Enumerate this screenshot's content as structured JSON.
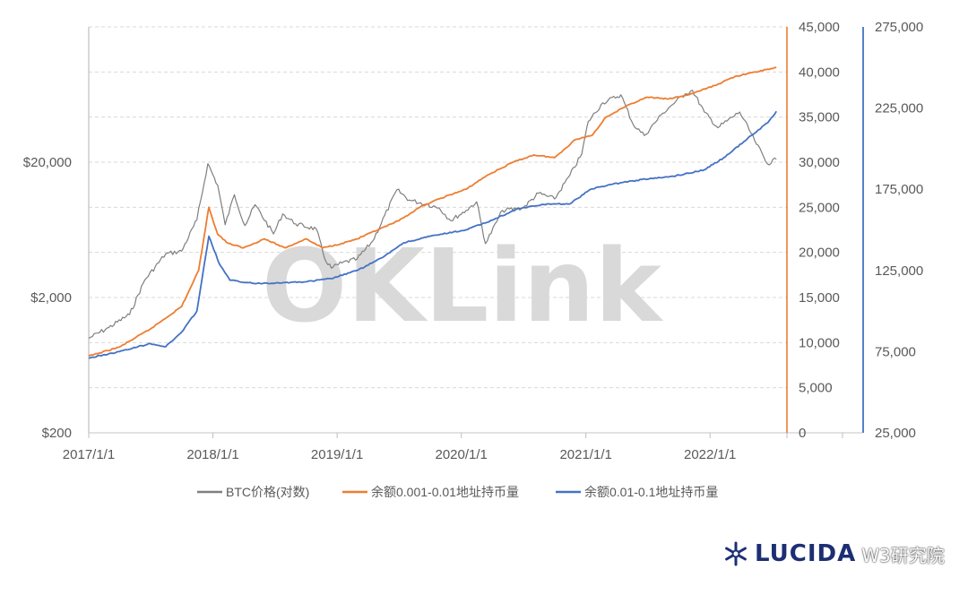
{
  "chart_data": {
    "type": "line",
    "watermark": "OKLink",
    "x_ticks": [
      "2017/1/1",
      "2018/1/1",
      "2019/1/1",
      "2020/1/1",
      "2021/1/1",
      "2022/1/1"
    ],
    "y_left": {
      "scale": "log",
      "range": [
        200,
        200000
      ],
      "ticks": [
        "$200",
        "$2,000",
        "$20,000"
      ]
    },
    "y_right1": {
      "range": [
        0,
        45000
      ],
      "ticks": [
        "0",
        "5,000",
        "10,000",
        "15,000",
        "20,000",
        "25,000",
        "30,000",
        "35,000",
        "40,000",
        "45,000"
      ]
    },
    "y_right2": {
      "range": [
        25000,
        275000
      ],
      "ticks": [
        "25,000",
        "75,000",
        "125,000",
        "175,000",
        "225,000",
        "275,000"
      ]
    },
    "grid": "horizontal-dashed",
    "legend_position": "bottom",
    "series": [
      {
        "name": "BTC价格(对数)",
        "axis": "left",
        "color": "#7f7f7f",
        "points": [
          [
            "2017-01-01",
            1000
          ],
          [
            "2017-03-01",
            1200
          ],
          [
            "2017-05-01",
            1500
          ],
          [
            "2017-06-15",
            2700
          ],
          [
            "2017-08-15",
            4200
          ],
          [
            "2017-10-01",
            4400
          ],
          [
            "2017-11-15",
            7500
          ],
          [
            "2017-12-17",
            19500
          ],
          [
            "2018-01-15",
            13500
          ],
          [
            "2018-02-06",
            6900
          ],
          [
            "2018-03-05",
            11500
          ],
          [
            "2018-04-05",
            6800
          ],
          [
            "2018-05-05",
            9700
          ],
          [
            "2018-06-28",
            5900
          ],
          [
            "2018-07-25",
            8300
          ],
          [
            "2018-09-01",
            7000
          ],
          [
            "2018-11-01",
            6400
          ],
          [
            "2018-11-25",
            3900
          ],
          [
            "2018-12-15",
            3300
          ],
          [
            "2019-01-15",
            3600
          ],
          [
            "2019-03-01",
            3850
          ],
          [
            "2019-04-15",
            5200
          ],
          [
            "2019-06-26",
            12500
          ],
          [
            "2019-08-01",
            10500
          ],
          [
            "2019-09-20",
            9800
          ],
          [
            "2019-10-28",
            9200
          ],
          [
            "2019-12-01",
            7400
          ],
          [
            "2020-01-15",
            8800
          ],
          [
            "2020-02-15",
            10200
          ],
          [
            "2020-03-12",
            5000
          ],
          [
            "2020-05-01",
            8800
          ],
          [
            "2020-07-01",
            9200
          ],
          [
            "2020-08-15",
            11800
          ],
          [
            "2020-10-01",
            10700
          ],
          [
            "2020-11-15",
            16000
          ],
          [
            "2020-12-20",
            23000
          ],
          [
            "2021-01-08",
            40000
          ],
          [
            "2021-02-20",
            55000
          ],
          [
            "2021-04-14",
            63000
          ],
          [
            "2021-05-20",
            38000
          ],
          [
            "2021-06-22",
            31500
          ],
          [
            "2021-08-15",
            46000
          ],
          [
            "2021-09-07",
            52000
          ],
          [
            "2021-10-20",
            64000
          ],
          [
            "2021-11-10",
            68000
          ],
          [
            "2021-12-15",
            47000
          ],
          [
            "2022-01-24",
            36000
          ],
          [
            "2022-03-29",
            47000
          ],
          [
            "2022-05-12",
            29000
          ],
          [
            "2022-06-18",
            19500
          ],
          [
            "2022-07-15",
            21000
          ]
        ]
      },
      {
        "name": "余额0.001-0.01地址持币量",
        "axis": "right1",
        "color": "#ed7d31",
        "points": [
          [
            "2017-01-01",
            8500
          ],
          [
            "2017-04-01",
            9500
          ],
          [
            "2017-07-01",
            11500
          ],
          [
            "2017-10-01",
            14000
          ],
          [
            "2017-11-20",
            18000
          ],
          [
            "2017-12-20",
            25000
          ],
          [
            "2018-01-15",
            22000
          ],
          [
            "2018-02-15",
            21000
          ],
          [
            "2018-04-01",
            20500
          ],
          [
            "2018-06-01",
            21500
          ],
          [
            "2018-08-01",
            20500
          ],
          [
            "2018-10-01",
            21500
          ],
          [
            "2018-11-20",
            20500
          ],
          [
            "2019-01-15",
            21000
          ],
          [
            "2019-03-01",
            21500
          ],
          [
            "2019-05-01",
            22500
          ],
          [
            "2019-07-01",
            23500
          ],
          [
            "2019-09-01",
            25000
          ],
          [
            "2019-11-01",
            26000
          ],
          [
            "2020-01-15",
            27000
          ],
          [
            "2020-03-15",
            28500
          ],
          [
            "2020-06-01",
            30000
          ],
          [
            "2020-08-01",
            30800
          ],
          [
            "2020-10-01",
            30500
          ],
          [
            "2020-12-01",
            32500
          ],
          [
            "2021-01-20",
            33000
          ],
          [
            "2021-03-01",
            35000
          ],
          [
            "2021-05-15",
            36500
          ],
          [
            "2021-07-01",
            37200
          ],
          [
            "2021-09-01",
            37000
          ],
          [
            "2021-11-01",
            37500
          ],
          [
            "2022-01-15",
            38500
          ],
          [
            "2022-03-15",
            39500
          ],
          [
            "2022-05-15",
            40000
          ],
          [
            "2022-07-15",
            40500
          ]
        ]
      },
      {
        "name": "余额0.01-0.1地址持币量",
        "axis": "right2",
        "color": "#4472c4",
        "points": [
          [
            "2017-01-01",
            71000
          ],
          [
            "2017-04-01",
            75000
          ],
          [
            "2017-07-01",
            80000
          ],
          [
            "2017-08-15",
            78000
          ],
          [
            "2017-10-01",
            87000
          ],
          [
            "2017-11-15",
            100000
          ],
          [
            "2017-12-20",
            146000
          ],
          [
            "2018-01-20",
            129000
          ],
          [
            "2018-02-20",
            119000
          ],
          [
            "2018-05-01",
            117000
          ],
          [
            "2018-08-01",
            117500
          ],
          [
            "2018-10-01",
            118000
          ],
          [
            "2018-12-15",
            120000
          ],
          [
            "2019-03-01",
            125000
          ],
          [
            "2019-05-15",
            133000
          ],
          [
            "2019-07-15",
            142000
          ],
          [
            "2019-10-01",
            146000
          ],
          [
            "2020-01-15",
            150000
          ],
          [
            "2020-04-01",
            156000
          ],
          [
            "2020-06-15",
            163000
          ],
          [
            "2020-09-15",
            166000
          ],
          [
            "2020-11-15",
            166000
          ],
          [
            "2021-01-15",
            175000
          ],
          [
            "2021-03-15",
            178000
          ],
          [
            "2021-06-15",
            181000
          ],
          [
            "2021-09-15",
            183000
          ],
          [
            "2021-12-15",
            187000
          ],
          [
            "2022-02-15",
            195000
          ],
          [
            "2022-05-01",
            208000
          ],
          [
            "2022-06-20",
            216000
          ],
          [
            "2022-07-15",
            223000
          ]
        ]
      }
    ]
  },
  "brand": {
    "logo_text": "LUCIDA",
    "overlay_text": "W3研究院"
  }
}
